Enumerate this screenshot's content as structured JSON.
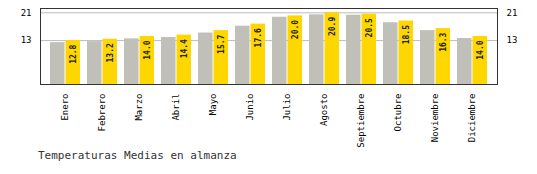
{
  "chart_data": {
    "type": "bar",
    "title": "Temperaturas Medias en almanza",
    "categories": [
      "Enero",
      "Febrero",
      "Marzo",
      "Abril",
      "Mayo",
      "Junio",
      "Julio",
      "Agosto",
      "Septiembre",
      "Octubre",
      "Noviembre",
      "Diciembre"
    ],
    "series": [
      {
        "color": "#C0C0B8",
        "values": [
          12.2,
          12.5,
          13.3,
          13.7,
          15.0,
          17.0,
          19.6,
          20.3,
          20.2,
          18.0,
          15.7,
          13.4
        ]
      },
      {
        "color": "#FFD700",
        "values": [
          12.8,
          13.2,
          14.0,
          14.4,
          15.7,
          17.6,
          20.0,
          20.9,
          20.5,
          18.5,
          16.3,
          14.0
        ],
        "data_labels": true,
        "value_labels": [
          "12.8",
          "13.2",
          "14.0",
          "14.4",
          "15.7",
          "17.6",
          "20.0",
          "20.9",
          "20.5",
          "18.5",
          "16.3",
          "14.0"
        ]
      }
    ],
    "ylim": [
      0,
      22.154
    ],
    "yticks": [
      12.8,
      20.9
    ],
    "grid": true
  }
}
